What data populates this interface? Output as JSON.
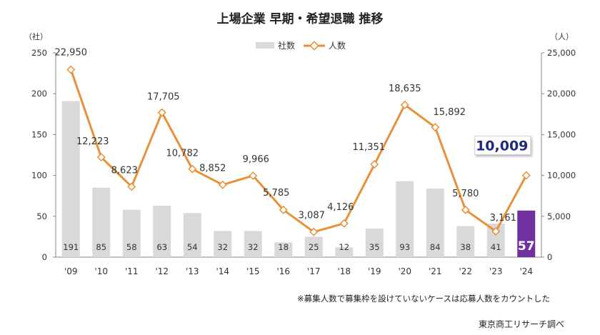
{
  "chart_data": {
    "type": "bar+line",
    "title": "上場企業 早期・希望退職 推移",
    "left_axis_unit": "（社）",
    "right_axis_unit": "（人）",
    "categories": [
      "'09",
      "'10",
      "'11",
      "'12",
      "'13",
      "'14",
      "'15",
      "'16",
      "'17",
      "'18",
      "'19",
      "'20",
      "'21",
      "'22",
      "'23",
      "'24"
    ],
    "series": [
      {
        "name": "社数",
        "type": "bar",
        "axis": "left",
        "color": "#d9d9d9",
        "highlight_color": "#7030a0",
        "values": [
          191,
          85,
          58,
          63,
          54,
          32,
          32,
          18,
          25,
          12,
          35,
          93,
          84,
          38,
          41,
          57
        ],
        "labels": [
          "191",
          "85",
          "58",
          "63",
          "54",
          "32",
          "32",
          "18",
          "25",
          "12",
          "35",
          "93",
          "84",
          "38",
          "41",
          "57"
        ]
      },
      {
        "name": "人数",
        "type": "line",
        "axis": "right",
        "color": "#e8913a",
        "values": [
          22950,
          12223,
          8623,
          17705,
          10782,
          8852,
          9966,
          5785,
          3087,
          4126,
          11351,
          18635,
          15892,
          5780,
          3161,
          10009
        ],
        "labels": [
          "22,950",
          "12,223",
          "8,623",
          "17,705",
          "10,782",
          "8,852",
          "9,966",
          "5,785",
          "3,087",
          "4,126",
          "11,351",
          "18,635",
          "15,892",
          "5,780",
          "3,161",
          "10,009"
        ]
      }
    ],
    "left_ylim": [
      0,
      250
    ],
    "left_ticks": [
      "0",
      "50",
      "100",
      "150",
      "200",
      "250"
    ],
    "right_ylim": [
      0,
      25000
    ],
    "right_ticks": [
      "0",
      "5,000",
      "10,000",
      "15,000",
      "20,000",
      "25,000"
    ],
    "legend_position": "top-center",
    "grid": false
  },
  "note": "※募集人数で募集枠を設けていないケースは応募人数をカウントした",
  "source": "東京商工リサーチ調べ"
}
